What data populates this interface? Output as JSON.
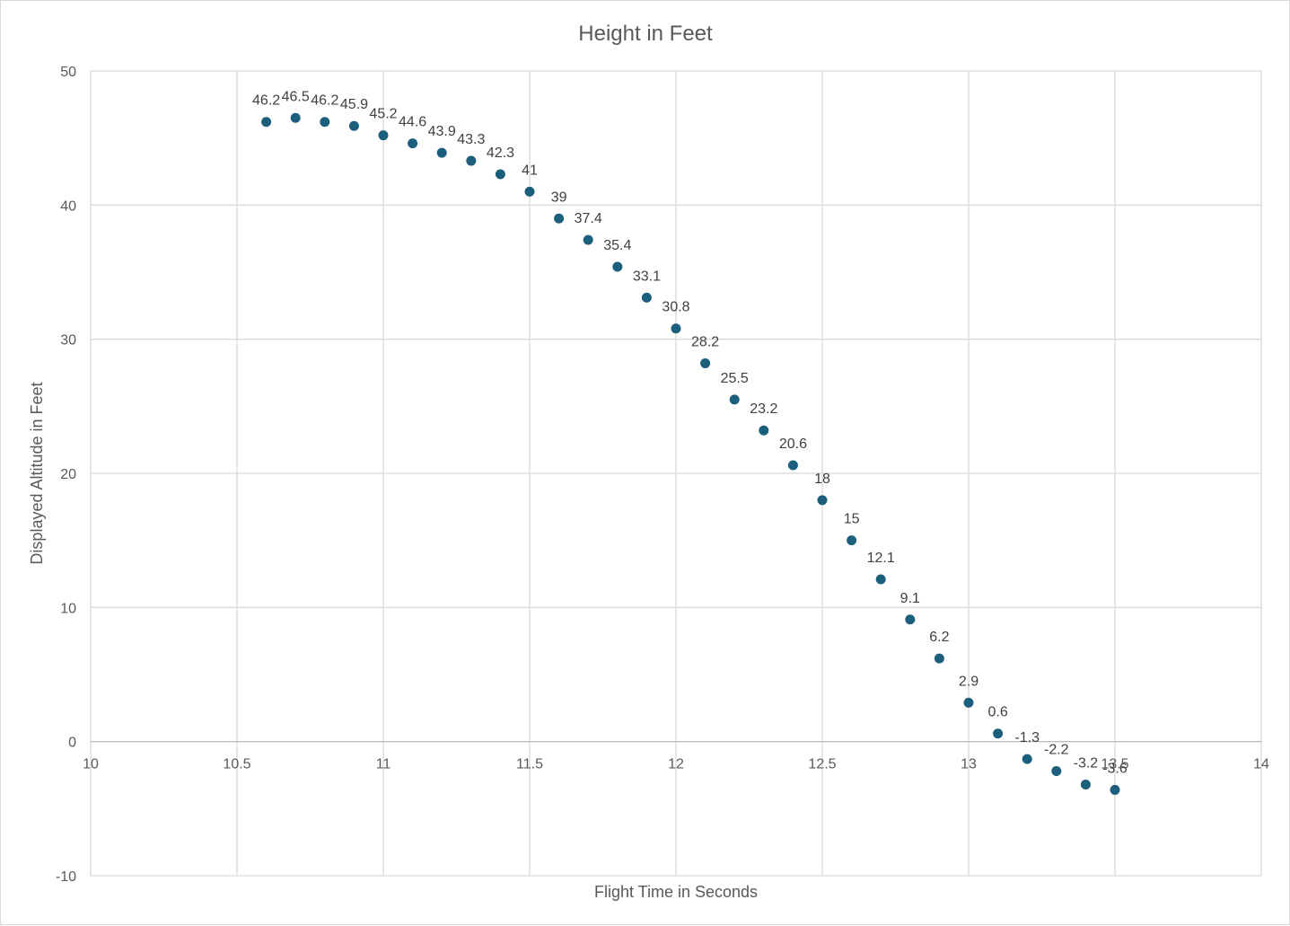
{
  "chart_data": {
    "type": "scatter",
    "title": "Height in Feet",
    "xlabel": "Flight Time in Seconds",
    "ylabel": "Displayed Altitude in Feet",
    "xlim": [
      10,
      14
    ],
    "ylim": [
      -10,
      50
    ],
    "x_ticks": [
      "10",
      "10.5",
      "11",
      "11.5",
      "12",
      "12.5",
      "13",
      "13.5",
      "14"
    ],
    "y_ticks": [
      "-10",
      "0",
      "10",
      "20",
      "30",
      "40",
      "50"
    ],
    "grid": true,
    "legend": "none",
    "marker_color": "#1b5f7d",
    "series": [
      {
        "x": [
          10.6,
          10.7,
          10.8,
          10.9,
          11.0,
          11.1,
          11.2,
          11.3,
          11.4,
          11.5,
          11.6,
          11.7,
          11.8,
          11.9,
          12.0,
          12.1,
          12.2,
          12.3,
          12.4,
          12.5,
          12.6,
          12.7,
          12.8,
          12.9,
          13.0,
          13.1,
          13.2,
          13.3,
          13.4,
          13.5
        ],
        "y": [
          46.2,
          46.5,
          46.2,
          45.9,
          45.2,
          44.6,
          43.9,
          43.3,
          42.3,
          41,
          39,
          37.4,
          35.4,
          33.1,
          30.8,
          28.2,
          25.5,
          23.2,
          20.6,
          18,
          15,
          12.1,
          9.1,
          6.2,
          2.9,
          0.6,
          -1.3,
          -2.2,
          -3.2,
          -3.6
        ],
        "labels": [
          "46.2",
          "46.5",
          "46.2",
          "45.9",
          "45.2",
          "44.6",
          "43.9",
          "43.3",
          "42.3",
          "41",
          "39",
          "37.4",
          "35.4",
          "33.1",
          "30.8",
          "28.2",
          "25.5",
          "23.2",
          "20.6",
          "18",
          "15",
          "12.1",
          "9.1",
          "6.2",
          "2.9",
          "0.6",
          "-1.3",
          "-2.2",
          "-3.2",
          "-3.6"
        ]
      }
    ]
  }
}
